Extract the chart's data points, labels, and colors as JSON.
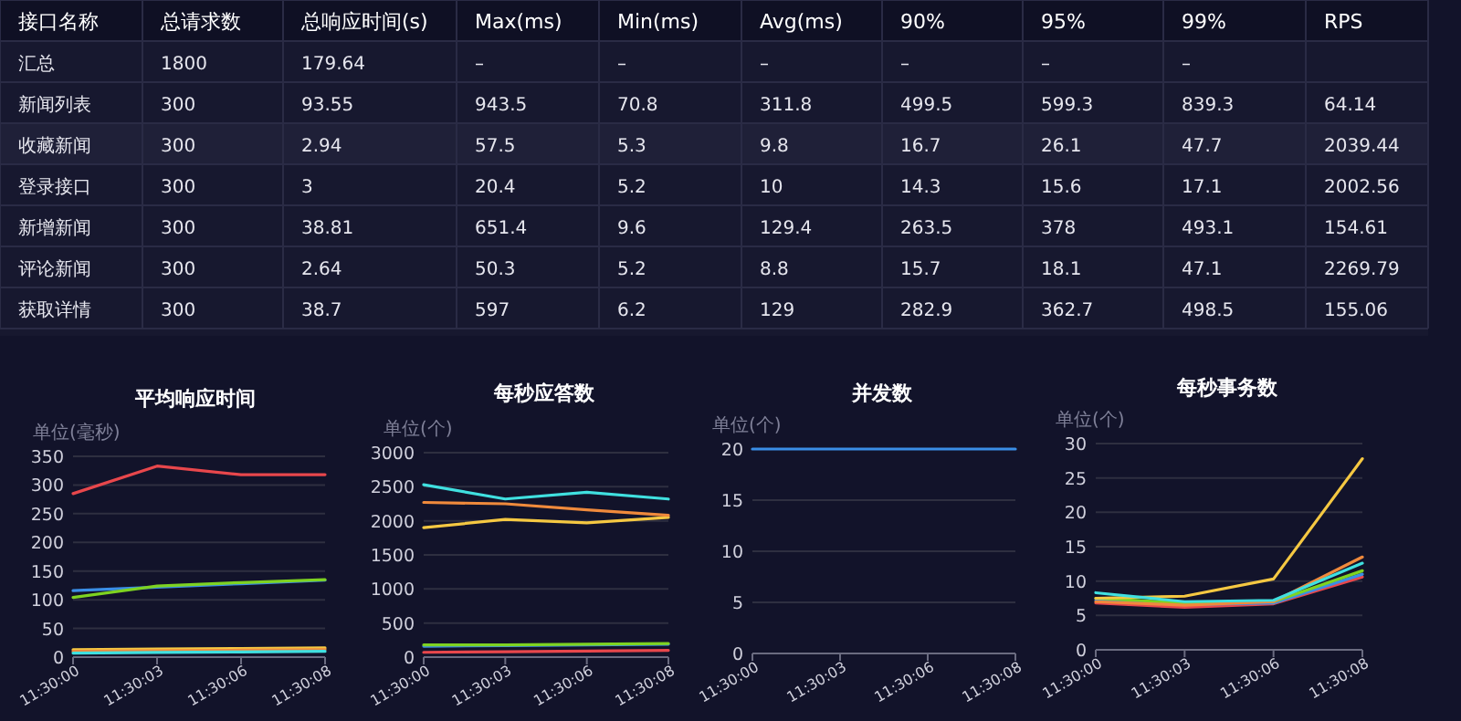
{
  "chart_data": [
    {
      "type": "other",
      "categories": [
        "接口名称",
        "总请求数",
        "总响应时间(s)",
        "Max(ms)",
        "Min(ms)",
        "Avg(ms)",
        "90%",
        "95%",
        "99%",
        "RPS"
      ],
      "cell_labels": [
        [
          "汇总",
          "1800",
          "179.64",
          "–",
          "–",
          "–",
          "–",
          "–",
          "–",
          null
        ],
        [
          "新闻列表",
          "300",
          "93.55",
          "943.5",
          "70.8",
          "311.8",
          "499.5",
          "599.3",
          "839.3",
          "64.14"
        ],
        [
          "收藏新闻",
          "300",
          "2.94",
          "57.5",
          "5.3",
          "9.8",
          "16.7",
          "26.1",
          "47.7",
          "2039.44"
        ],
        [
          "登录接口",
          "300",
          "3",
          "20.4",
          "5.2",
          "10",
          "14.3",
          "15.6",
          "17.1",
          "2002.56"
        ],
        [
          "新增新闻",
          "300",
          "38.81",
          "651.4",
          "9.6",
          "129.4",
          "263.5",
          "378",
          "493.1",
          "154.61"
        ],
        [
          "评论新闻",
          "300",
          "2.64",
          "50.3",
          "5.2",
          "8.8",
          "15.7",
          "18.1",
          "47.1",
          "2269.79"
        ],
        [
          "获取详情",
          "300",
          "38.7",
          "597",
          "6.2",
          "129",
          "282.9",
          "362.7",
          "498.5",
          "155.06"
        ]
      ]
    },
    {
      "type": "line",
      "title": "平均响应时间",
      "ylabel": "单位(毫秒)",
      "categories": [
        "11:30:00",
        "11:30:03",
        "11:30:06",
        "11:30:08"
      ],
      "ylim": [
        0,
        350
      ],
      "yticks": [
        0,
        50,
        100,
        150,
        200,
        250,
        300,
        350
      ],
      "grid": "y",
      "marker": "none",
      "series": [
        {
          "color": "#e8474c",
          "values": [
            285,
            333,
            318,
            318
          ]
        },
        {
          "color": "#3a8ee6",
          "values": [
            116,
            122,
            128,
            134
          ]
        },
        {
          "color": "#7ed321",
          "values": [
            104,
            124,
            130,
            135
          ]
        },
        {
          "color": "#f5c842",
          "values": [
            13,
            14,
            15,
            16
          ]
        },
        {
          "color": "#f08a3c",
          "values": [
            10,
            11,
            12,
            13
          ]
        },
        {
          "color": "#40e0e0",
          "values": [
            7,
            8,
            9,
            10
          ]
        }
      ]
    },
    {
      "type": "line",
      "title": "每秒应答数",
      "ylabel": "单位(个)",
      "categories": [
        "11:30:00",
        "11:30:03",
        "11:30:06",
        "11:30:08"
      ],
      "ylim": [
        0,
        3000
      ],
      "yticks": [
        0,
        500,
        1000,
        1500,
        2000,
        2500,
        3000
      ],
      "grid": "y",
      "marker": "none",
      "series": [
        {
          "color": "#e8474c",
          "values": [
            70,
            80,
            90,
            100
          ]
        },
        {
          "color": "#3a8ee6",
          "values": [
            160,
            170,
            180,
            190
          ]
        },
        {
          "color": "#7ed321",
          "values": [
            180,
            180,
            190,
            200
          ]
        },
        {
          "color": "#f5c842",
          "values": [
            1900,
            2020,
            1970,
            2050
          ]
        },
        {
          "color": "#f08a3c",
          "values": [
            2270,
            2250,
            2160,
            2080
          ]
        },
        {
          "color": "#40e0e0",
          "values": [
            2530,
            2320,
            2420,
            2320
          ]
        }
      ]
    },
    {
      "type": "line",
      "title": "并发数",
      "ylabel": "单位(个)",
      "categories": [
        "11:30:00",
        "11:30:03",
        "11:30:06",
        "11:30:08"
      ],
      "ylim": [
        0,
        20
      ],
      "yticks": [
        0,
        5,
        10,
        15,
        20
      ],
      "grid": "y",
      "marker": "none",
      "series": [
        {
          "color": "#3a8ee6",
          "values": [
            20,
            20,
            20,
            20
          ]
        }
      ]
    },
    {
      "type": "line",
      "title": "每秒事务数",
      "ylabel": "单位(个)",
      "categories": [
        "11:30:00",
        "11:30:03",
        "11:30:06",
        "11:30:08"
      ],
      "ylim": [
        0,
        30
      ],
      "yticks": [
        0,
        5,
        10,
        15,
        20,
        25,
        30
      ],
      "grid": "y",
      "marker": "none",
      "series": [
        {
          "color": "#e8474c",
          "values": [
            6.8,
            6.2,
            6.7,
            10.6
          ]
        },
        {
          "color": "#3a8ee6",
          "values": [
            7.2,
            6.6,
            6.8,
            11
          ]
        },
        {
          "color": "#7ed321",
          "values": [
            7.5,
            6.8,
            7,
            11.5
          ]
        },
        {
          "color": "#f5c842",
          "values": [
            7.5,
            7.8,
            10.3,
            27.8
          ]
        },
        {
          "color": "#f08a3c",
          "values": [
            7,
            6.5,
            7,
            13.5
          ]
        },
        {
          "color": "#40e0e0",
          "values": [
            8.3,
            7,
            7.2,
            12.6
          ]
        }
      ]
    }
  ]
}
